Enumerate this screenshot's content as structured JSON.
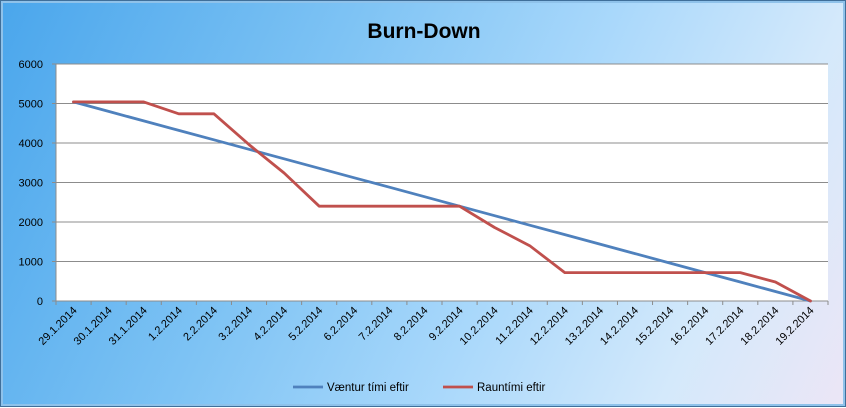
{
  "chart_data": {
    "type": "line",
    "title": "Burn-Down",
    "xlabel": "",
    "ylabel": "",
    "ylim": [
      0,
      6000
    ],
    "yticks": [
      0,
      1000,
      2000,
      3000,
      4000,
      5000,
      6000
    ],
    "grid": true,
    "legend_position": "bottom",
    "categories": [
      "29.1.2014",
      "30.1.2014",
      "31.1.2014",
      "1.2.2014",
      "2.2.2014",
      "3.2.2014",
      "4.2.2014",
      "5.2.2014",
      "6.2.2014",
      "7.2.2014",
      "8.2.2014",
      "9.2.2014",
      "10.2.2014",
      "11.2.2014",
      "12.2.2014",
      "13.2.2014",
      "14.2.2014",
      "15.2.2014",
      "16.2.2014",
      "17.2.2014",
      "18.2.2014",
      "19.2.2014"
    ],
    "series": [
      {
        "name": "Væntur tími eftir",
        "color": "#4f81bd",
        "values": [
          5040,
          4800,
          4560,
          4320,
          4080,
          3840,
          3600,
          3360,
          3120,
          2880,
          2640,
          2400,
          2160,
          1920,
          1680,
          1440,
          1200,
          960,
          720,
          480,
          240,
          0
        ]
      },
      {
        "name": "Rauntími eftir",
        "color": "#c0504d",
        "values": [
          5040,
          5040,
          5040,
          4740,
          4740,
          3960,
          3240,
          2400,
          2400,
          2400,
          2400,
          2400,
          1860,
          1400,
          720,
          720,
          720,
          720,
          720,
          720,
          480,
          0
        ]
      }
    ]
  }
}
